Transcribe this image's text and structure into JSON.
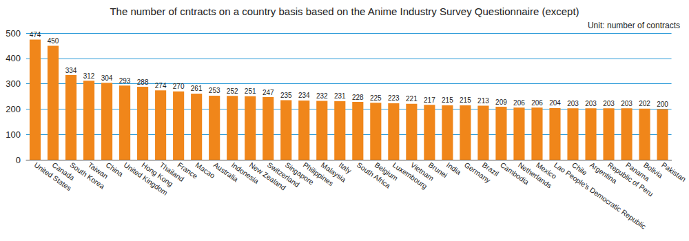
{
  "chart_data": {
    "type": "bar",
    "title": "The number of cntracts on a country basis based on the Anime Industry Survey Questionnaire (except)",
    "subtitle": "Unit: number of contracts",
    "categories": [
      "United States",
      "Canada",
      "South Korea",
      "Taiwan",
      "China",
      "United Kingdom",
      "Hong Kong",
      "Thailand",
      "France",
      "Macao",
      "Australia",
      "Indonesia",
      "New Zealand",
      "Switzerland",
      "Singapore",
      "Philippines",
      "Malaysia",
      "Italy",
      "South Africa",
      "Belgium",
      "Luxembourg",
      "Vietnam",
      "Brunei",
      "India",
      "Germany",
      "Brazil",
      "Cambodia",
      "Netherlands",
      "Mexico",
      "Lao People's Democratic Republic",
      "Chile",
      "Argentina",
      "Republic of Peru",
      "Panama",
      "Bolivia",
      "Pakistan"
    ],
    "values": [
      474,
      450,
      334,
      312,
      304,
      293,
      288,
      274,
      270,
      261,
      253,
      252,
      251,
      247,
      235,
      234,
      232,
      231,
      228,
      225,
      223,
      221,
      217,
      215,
      215,
      213,
      209,
      206,
      206,
      204,
      203,
      203,
      203,
      203,
      202,
      200
    ],
    "color": "#f0861a",
    "ylim": [
      0,
      500
    ],
    "yticks": [
      0,
      100,
      200,
      300,
      400,
      500
    ],
    "grid": true,
    "data_labels": true
  }
}
